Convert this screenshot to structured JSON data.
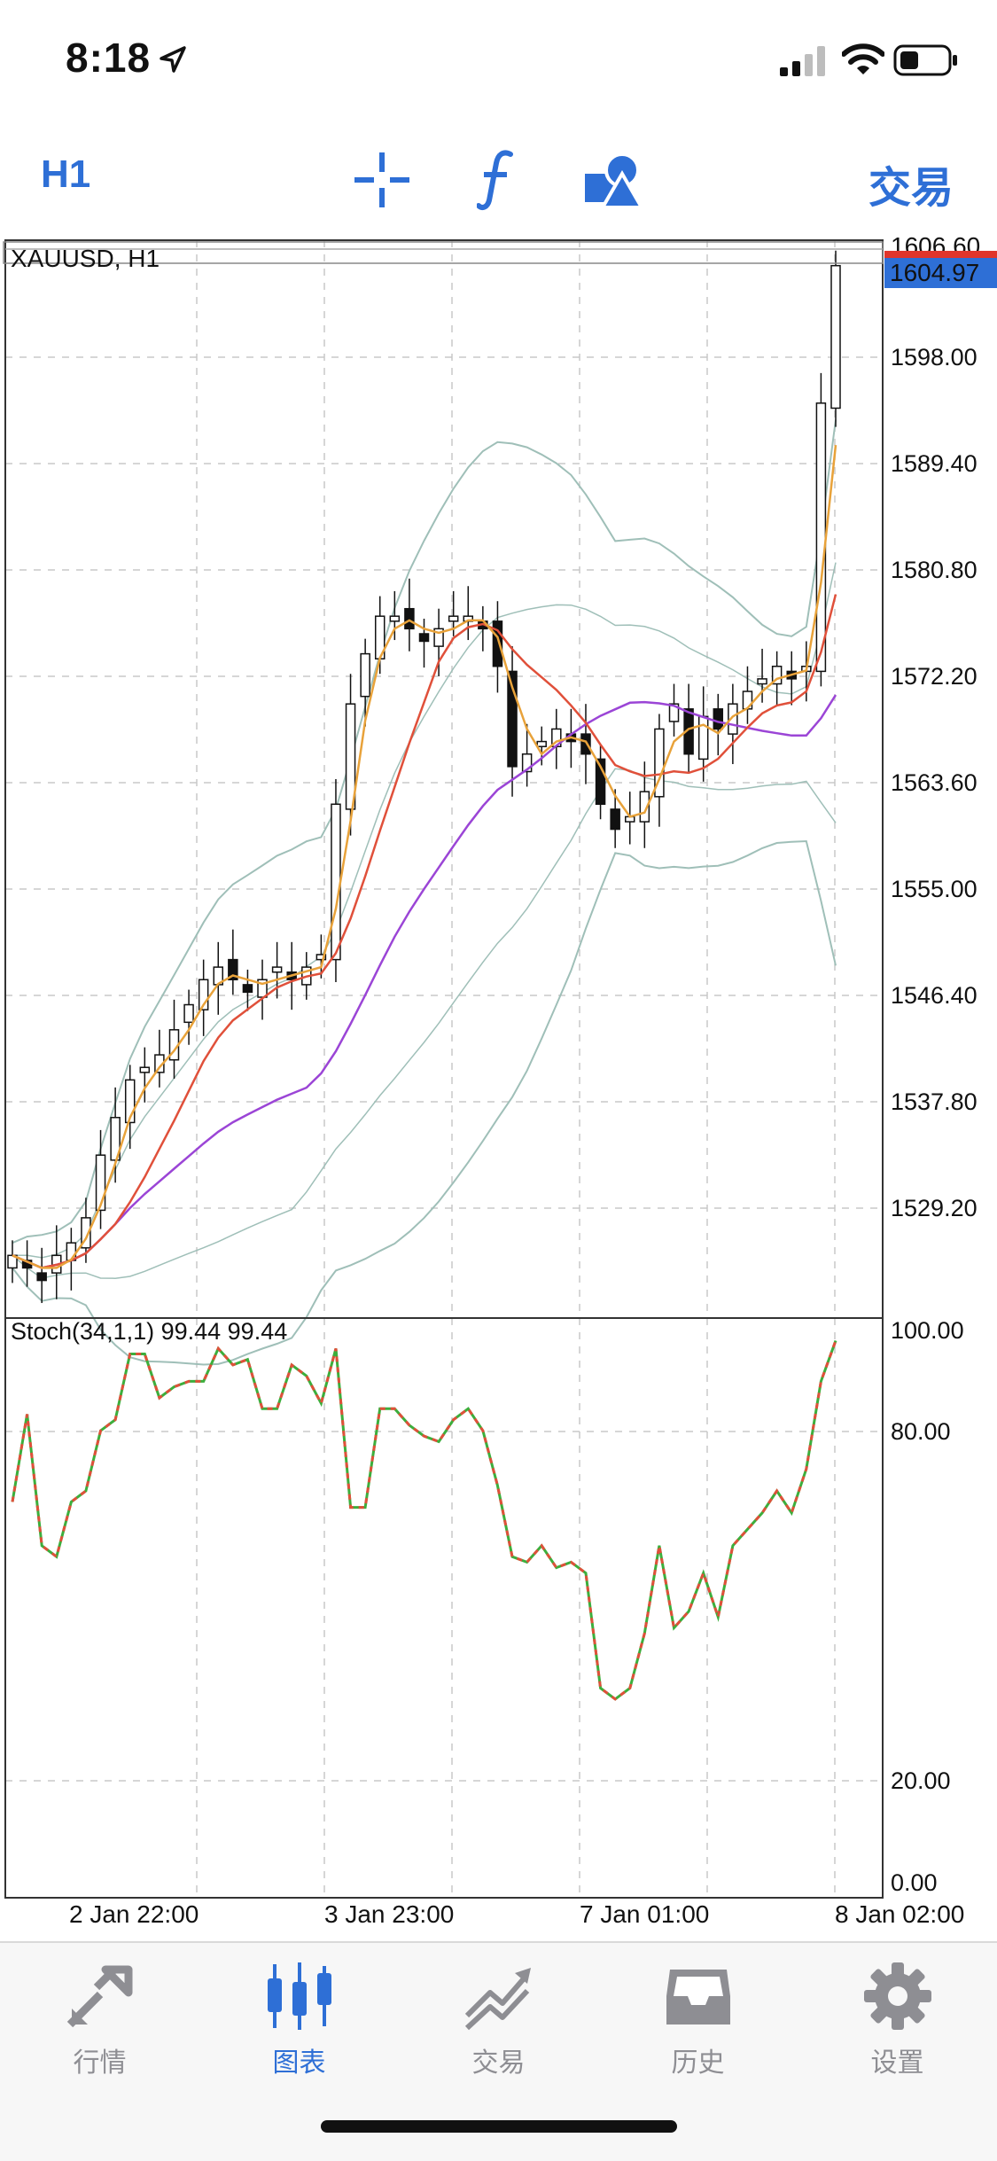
{
  "status_bar": {
    "time": "8:18"
  },
  "toolbar": {
    "timeframe": "H1",
    "trade_label": "交易",
    "icons": [
      "crosshair-icon",
      "function-icon",
      "objects-icon"
    ]
  },
  "chart": {
    "title": "XAUUSD, H1",
    "current_price": "1604.97",
    "top_price_partial": "1606.60",
    "price_ticks": [
      "1598.00",
      "1589.40",
      "1580.80",
      "1572.20",
      "1563.60",
      "1555.00",
      "1546.40",
      "1537.80",
      "1529.20"
    ],
    "indicator_label": "Stoch(34,1,1) 99.44 99.44",
    "indicator_ticks": [
      "100.00",
      "80.00",
      "20.00",
      "0.00"
    ],
    "time_ticks": [
      "2 Jan 22:00",
      "3 Jan 23:00",
      "7 Jan 01:00",
      "8 Jan 02:00"
    ],
    "colors": {
      "accent": "#2e6fd6",
      "ma_fast": "#e8a23a",
      "ma_mid": "#e0503a",
      "ma_slow": "#9b45d6",
      "bands": "#9fbfb8",
      "stoch_main": "#e0503a",
      "stoch_signal": "#3cae3c"
    }
  },
  "chart_data": {
    "type": "candlestick",
    "symbol": "XAUUSD",
    "timeframe": "H1",
    "price_axis": [
      1521,
      1607
    ],
    "close": [
      1526,
      1525,
      1524,
      1526,
      1527,
      1529,
      1534,
      1537,
      1540,
      1541,
      1542,
      1544,
      1546,
      1548,
      1549,
      1548,
      1547,
      1548,
      1549,
      1548,
      1549,
      1550,
      1562,
      1570,
      1574,
      1577,
      1577,
      1576,
      1575,
      1576,
      1577,
      1577,
      1576,
      1573,
      1565,
      1566,
      1567,
      1568,
      1567,
      1566,
      1562,
      1560,
      1561,
      1563,
      1568,
      1570,
      1566,
      1569,
      1568,
      1570,
      1571,
      1572,
      1573,
      1572,
      1573,
      1594,
      1604.97
    ],
    "stoch_axis": [
      0,
      100
    ],
    "stoch": [
      70,
      86,
      62,
      60,
      70,
      72,
      83,
      85,
      97,
      97,
      89,
      91,
      92,
      92,
      98,
      95,
      96,
      87,
      87,
      95,
      93,
      88,
      98,
      69,
      69,
      87,
      87,
      84,
      82,
      81,
      85,
      87,
      83,
      73,
      60,
      59,
      62,
      58,
      59,
      57,
      36,
      34,
      36,
      46,
      62,
      47,
      50,
      57,
      49,
      62,
      65,
      68,
      72,
      68,
      76,
      92,
      99.44
    ]
  },
  "tabs": [
    {
      "label": "行情",
      "icon": "quotes-icon"
    },
    {
      "label": "图表",
      "icon": "chart-candles-icon"
    },
    {
      "label": "交易",
      "icon": "trade-icon"
    },
    {
      "label": "历史",
      "icon": "history-icon"
    },
    {
      "label": "设置",
      "icon": "settings-icon"
    }
  ]
}
